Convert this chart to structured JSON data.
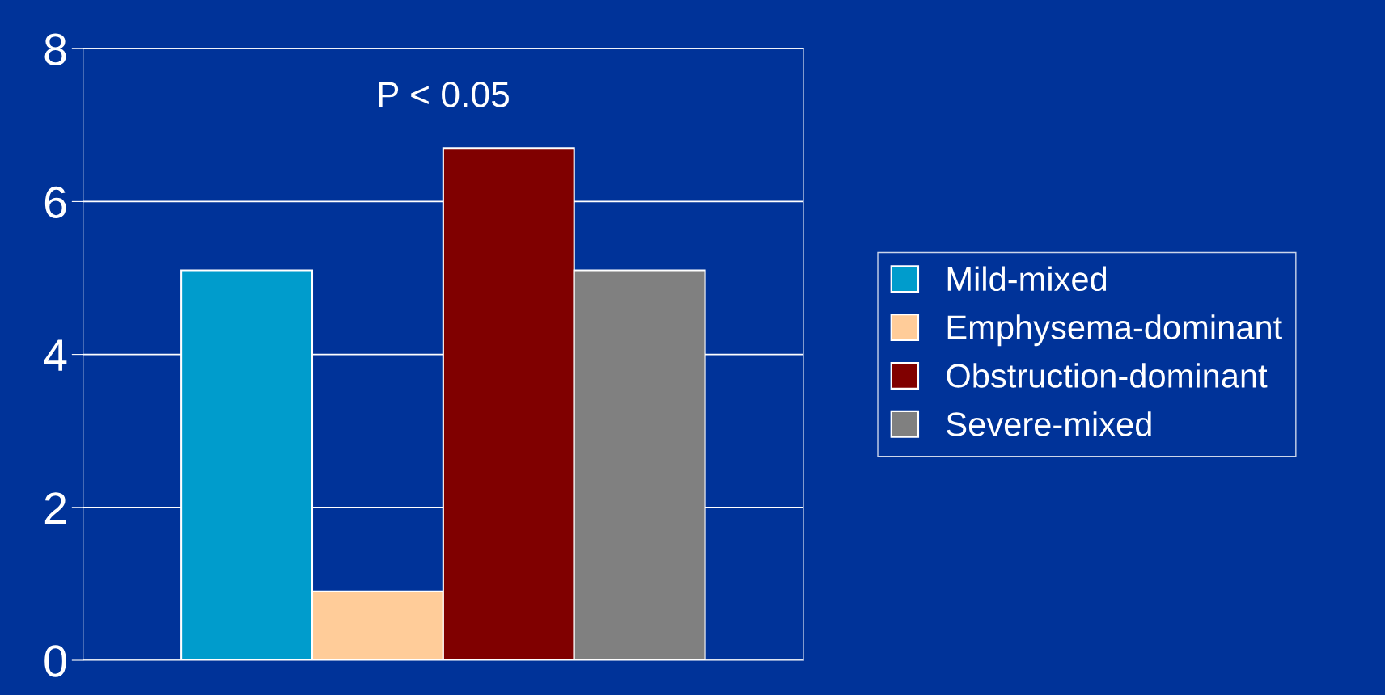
{
  "chart_data": {
    "type": "bar",
    "categories": [
      null
    ],
    "series": [
      {
        "name": "Mild-mixed",
        "color": "#009ccc",
        "values": [
          5.1
        ]
      },
      {
        "name": "Emphysema-dominant",
        "color": "#ffcc99",
        "values": [
          0.9
        ]
      },
      {
        "name": "Obstruction-dominant",
        "color": "#800000",
        "values": [
          6.7
        ]
      },
      {
        "name": "Severe-mixed",
        "color": "#808080",
        "values": [
          5.1
        ]
      }
    ],
    "ylim": [
      0,
      8
    ],
    "yticks": [
      0,
      2,
      4,
      6,
      8
    ],
    "grid": "y",
    "legend": "right",
    "annotations": [
      {
        "text": "P < 0.05"
      }
    ]
  }
}
